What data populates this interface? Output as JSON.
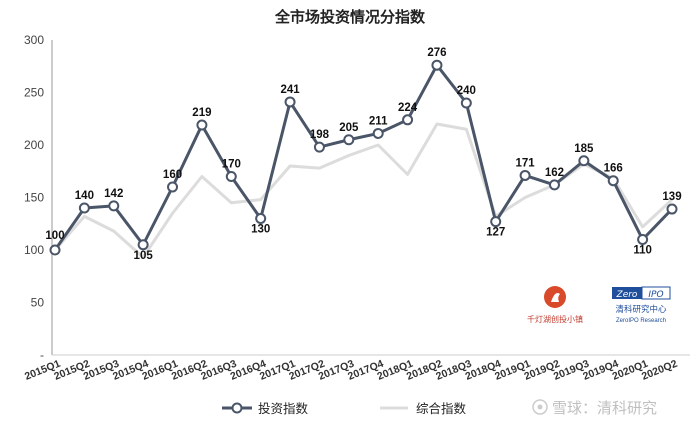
{
  "chart_data": {
    "type": "line",
    "title": "全市场投资情况分指数",
    "categories": [
      "2015Q1",
      "2015Q2",
      "2015Q3",
      "2015Q4",
      "2016Q1",
      "2016Q2",
      "2016Q3",
      "2016Q4",
      "2017Q1",
      "2017Q2",
      "2017Q3",
      "2017Q4",
      "2018Q1",
      "2018Q2",
      "2018Q3",
      "2018Q4",
      "2019Q1",
      "2019Q2",
      "2019Q3",
      "2019Q4",
      "2020Q1",
      "2020Q2"
    ],
    "series": [
      {
        "name": "投资指数",
        "color": "#4a5568",
        "values": [
          100,
          140,
          142,
          105,
          160,
          219,
          170,
          130,
          241,
          198,
          205,
          211,
          224,
          276,
          240,
          127,
          171,
          162,
          185,
          166,
          110,
          139
        ]
      },
      {
        "name": "综合指数",
        "color": "#dcdcdc",
        "values": [
          100,
          132,
          118,
          93,
          135,
          170,
          145,
          148,
          180,
          178,
          190,
          200,
          172,
          220,
          215,
          132,
          150,
          162,
          182,
          168,
          122,
          148
        ]
      }
    ],
    "ylim": [
      0,
      300
    ],
    "yticks": [
      0,
      50,
      100,
      150,
      200,
      250,
      300
    ],
    "ylabels": [
      "-",
      "50",
      "100",
      "150",
      "200",
      "250",
      "300"
    ],
    "grid": false,
    "legend": "bottom"
  },
  "logos": {
    "left_caption": "千灯湖创投小镇",
    "right_brand_left": "Zero",
    "right_brand_right": "IPO",
    "right_caption": "清科研究中心",
    "right_sub": "ZeroIPO Research"
  },
  "watermark": {
    "text": "雪球：清科研究",
    "icon": "snowball-icon"
  }
}
